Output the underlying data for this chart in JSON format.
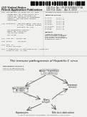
{
  "bg_color": "#f0f0ec",
  "barcode_color": "#111111",
  "diagram_title": "The immune pathogenesis of Hepatitis C virus",
  "footer_text": "* used, referenced & embedded - the activities of Hb Biomed",
  "left_box_lines": [
    "HBV DIRECT ASSAULT",
    "CELLULAR MECHANISMS",
    "role of immunopathology"
  ],
  "center_top_box_line1": "Acute Hepatitis C",
  "center_top_box_line2": "(the epidemic)",
  "left_mid_label1": "Trans-Endothelial",
  "left_mid_label2": "PATHWAYS",
  "right_top_label1": "Clearance",
  "right_top_label2": "(immune)",
  "left_bottom_label": "Hepatocytes",
  "right_bottom_label": "Bile duct obstruction",
  "mid_center_label1": "Biliary",
  "mid_center_label2": "(antigen)",
  "arrow_label_lu": "IL-6/IL",
  "arrow_label_ru": "IL-6/IL",
  "arrow_label_lm": "IL-6/IL",
  "arrow_label_lb": "IL-6/IL",
  "arrow_label_rb": "IL-6/IL"
}
